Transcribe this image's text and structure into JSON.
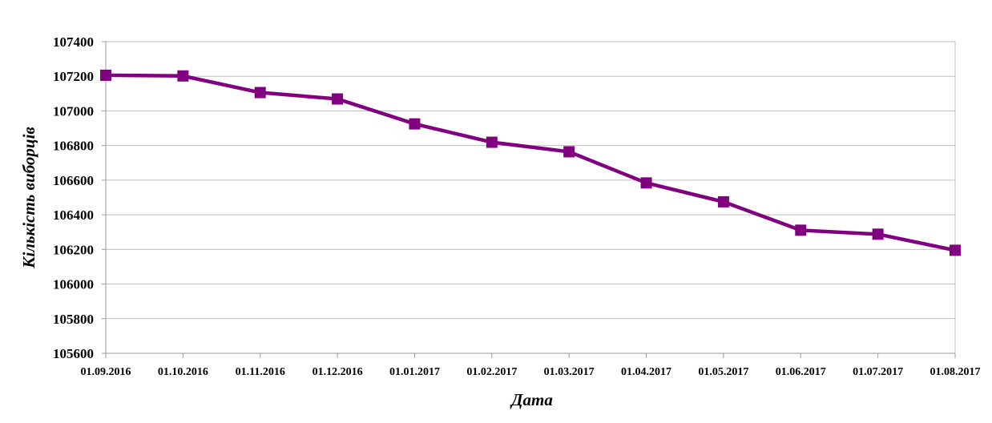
{
  "chart_data": {
    "type": "line",
    "title": "",
    "xlabel": "Дата",
    "ylabel": "Кількість виборців",
    "ylim": [
      105600,
      107400
    ],
    "ytick_step": 200,
    "grid": true,
    "legend": "none",
    "categories": [
      "01.09.2016",
      "01.10.2016",
      "01.11.2016",
      "01.12.2016",
      "01.01.2017",
      "01.02.2017",
      "01.03.2017",
      "01.04.2017",
      "01.05.2017",
      "01.06.2017",
      "01.07.2017",
      "01.08.2017"
    ],
    "series": [
      {
        "values": [
          107206,
          107202,
          107106,
          107069,
          106925,
          106819,
          106764,
          106584,
          106475,
          106311,
          106288,
          106195
        ],
        "color": "#800080",
        "marker": "square"
      }
    ],
    "colors": {
      "grid": "#bfbfbf",
      "axis": "#9a9a9a",
      "line": "#800080"
    }
  }
}
